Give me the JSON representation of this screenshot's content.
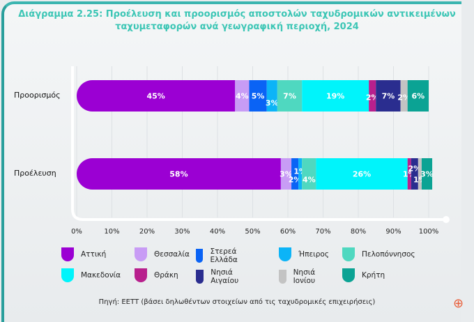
{
  "title": "Διάγραμμα 2.25: Προέλευση και προορισμός αποστολών ταχυδρομικών αντικειμένων ταχυμεταφορών ανά γεωγραφική περιοχή, 2024",
  "source": "Πηγή: ΕΕΤΤ (βάσει δηλωθέντων στοιχείων από τις ταχυδρομικές επιχειρήσεις)",
  "chart_data": {
    "type": "bar",
    "orientation": "horizontal",
    "stacked": true,
    "categories": [
      "Προορισμός",
      "Προέλευση"
    ],
    "xlim": [
      0,
      100
    ],
    "xticks": [
      "0%",
      "10%",
      "20%",
      "30%",
      "40%",
      "50%",
      "60%",
      "70%",
      "80%",
      "90%",
      "100%"
    ],
    "grid": true,
    "legend_position": "bottom",
    "series": [
      {
        "name": "Αττική",
        "color": "#9b00d3",
        "values": [
          45,
          58
        ]
      },
      {
        "name": "Θεσσαλία",
        "color": "#c89cf5",
        "values": [
          4,
          3
        ]
      },
      {
        "name": "Στερεά Ελλάδα",
        "color": "#0a63f5",
        "values": [
          5,
          2
        ]
      },
      {
        "name": "Ήπειρος",
        "color": "#0cb4f7",
        "values": [
          3,
          1
        ]
      },
      {
        "name": "Πελοπόννησος",
        "color": "#4fd8c0",
        "values": [
          7,
          4
        ]
      },
      {
        "name": "Μακεδονία",
        "color": "#00f4fb",
        "values": [
          19,
          26
        ]
      },
      {
        "name": "Θράκη",
        "color": "#b8208d",
        "values": [
          2,
          1
        ]
      },
      {
        "name": "Νησιά Αιγαίου",
        "color": "#2a2d8f",
        "values": [
          7,
          2
        ]
      },
      {
        "name": "Νησιά Ιονίου",
        "color": "#c3c3c3",
        "values": [
          2,
          1
        ]
      },
      {
        "name": "Κρήτη",
        "color": "#0ba394",
        "values": [
          6,
          3
        ]
      }
    ]
  },
  "icons": {
    "zoom": "zoom-in-icon"
  }
}
